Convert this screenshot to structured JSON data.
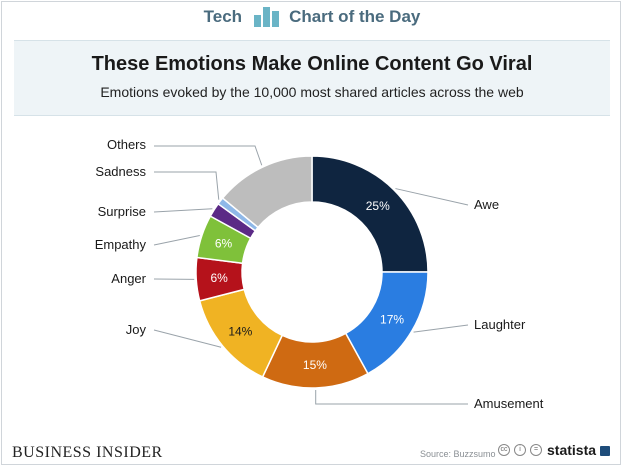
{
  "header": {
    "section": "Tech",
    "series_name": "Chart of the Day"
  },
  "footer": {
    "publisher": "BUSINESS INSIDER",
    "source": "Source: Buzzsumo",
    "brand": "statista"
  },
  "colors": {
    "brand_text": "#4a6b7e",
    "title_band": "#eef4f7"
  },
  "icons": [
    "chart-logo-icon",
    "creative-commons-icon",
    "attribution-icon",
    "equal-icon",
    "statista-logo-icon"
  ],
  "chart_data": {
    "type": "donut",
    "title": "These Emotions Make Online Content Go Viral",
    "subtitle": "Emotions evoked by the 10,000 most shared articles across the web",
    "unit": "%",
    "slices": [
      {
        "label": "Awe",
        "value": 25,
        "display": "25%",
        "color": "#0f2540",
        "text_color": "#ffffff"
      },
      {
        "label": "Laughter",
        "value": 17,
        "display": "17%",
        "color": "#2a7de1",
        "text_color": "#ffffff"
      },
      {
        "label": "Amusement",
        "value": 15,
        "display": "15%",
        "color": "#cf6a12",
        "text_color": "#ffffff"
      },
      {
        "label": "Joy",
        "value": 14,
        "display": "14%",
        "color": "#f0b323",
        "text_color": "#1a1a1a"
      },
      {
        "label": "Anger",
        "value": 6,
        "display": "6%",
        "color": "#b5121b",
        "text_color": "#ffffff"
      },
      {
        "label": "Empathy",
        "value": 6,
        "display": "6%",
        "color": "#7fc13a",
        "text_color": "#ffffff"
      },
      {
        "label": "Surprise",
        "value": 2,
        "display": "",
        "color": "#5b2a86",
        "text_color": "#ffffff"
      },
      {
        "label": "Sadness",
        "value": 1,
        "display": "",
        "color": "#8fb8e8",
        "text_color": "#ffffff"
      },
      {
        "label": "Others",
        "value": 14,
        "display": "",
        "color": "#bdbdbd",
        "text_color": "#1a1a1a"
      }
    ]
  }
}
